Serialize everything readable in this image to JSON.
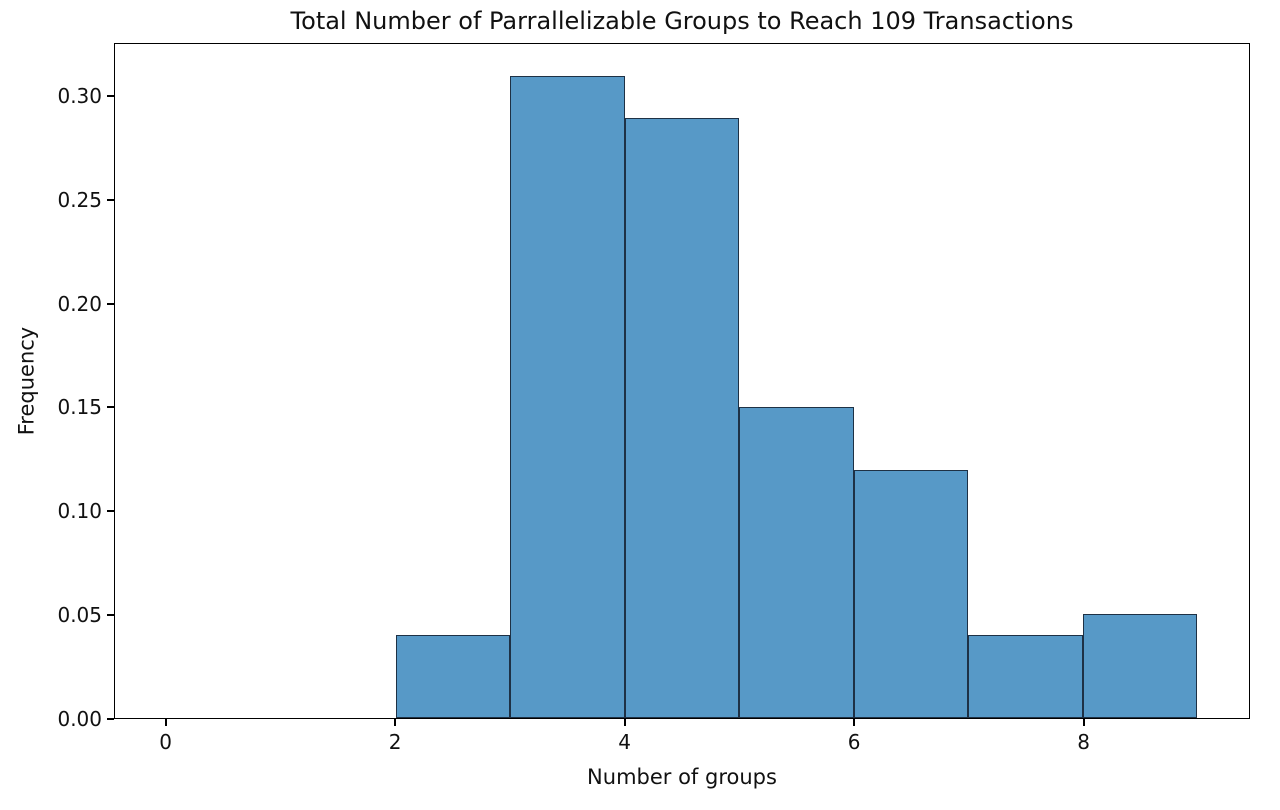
{
  "chart_data": {
    "type": "bar",
    "subtype": "histogram",
    "title": "Total Number of Parrallelizable Groups to Reach 109 Transactions",
    "xlabel": "Number of groups",
    "ylabel": "Frequency",
    "bin_edges": [
      0,
      1,
      2,
      3,
      4,
      5,
      6,
      7,
      8,
      9
    ],
    "frequencies": [
      0,
      0,
      0.04,
      0.31,
      0.29,
      0.15,
      0.12,
      0.04,
      0.05
    ],
    "xlim": [
      -0.45,
      9.45
    ],
    "ylim": [
      0,
      0.3255
    ],
    "xticks": [
      0,
      2,
      4,
      6,
      8
    ],
    "xtick_labels": [
      "0",
      "2",
      "4",
      "6",
      "8"
    ],
    "yticks": [
      0.0,
      0.05,
      0.1,
      0.15,
      0.2,
      0.25,
      0.3
    ],
    "ytick_labels": [
      "0.00",
      "0.05",
      "0.10",
      "0.15",
      "0.20",
      "0.25",
      "0.30"
    ],
    "grid": false,
    "legend_position": "none",
    "colors": {
      "bar_fill": "#5799c7",
      "bar_edge": "#1e3145",
      "axis": "#000000",
      "background": "#ffffff"
    }
  }
}
